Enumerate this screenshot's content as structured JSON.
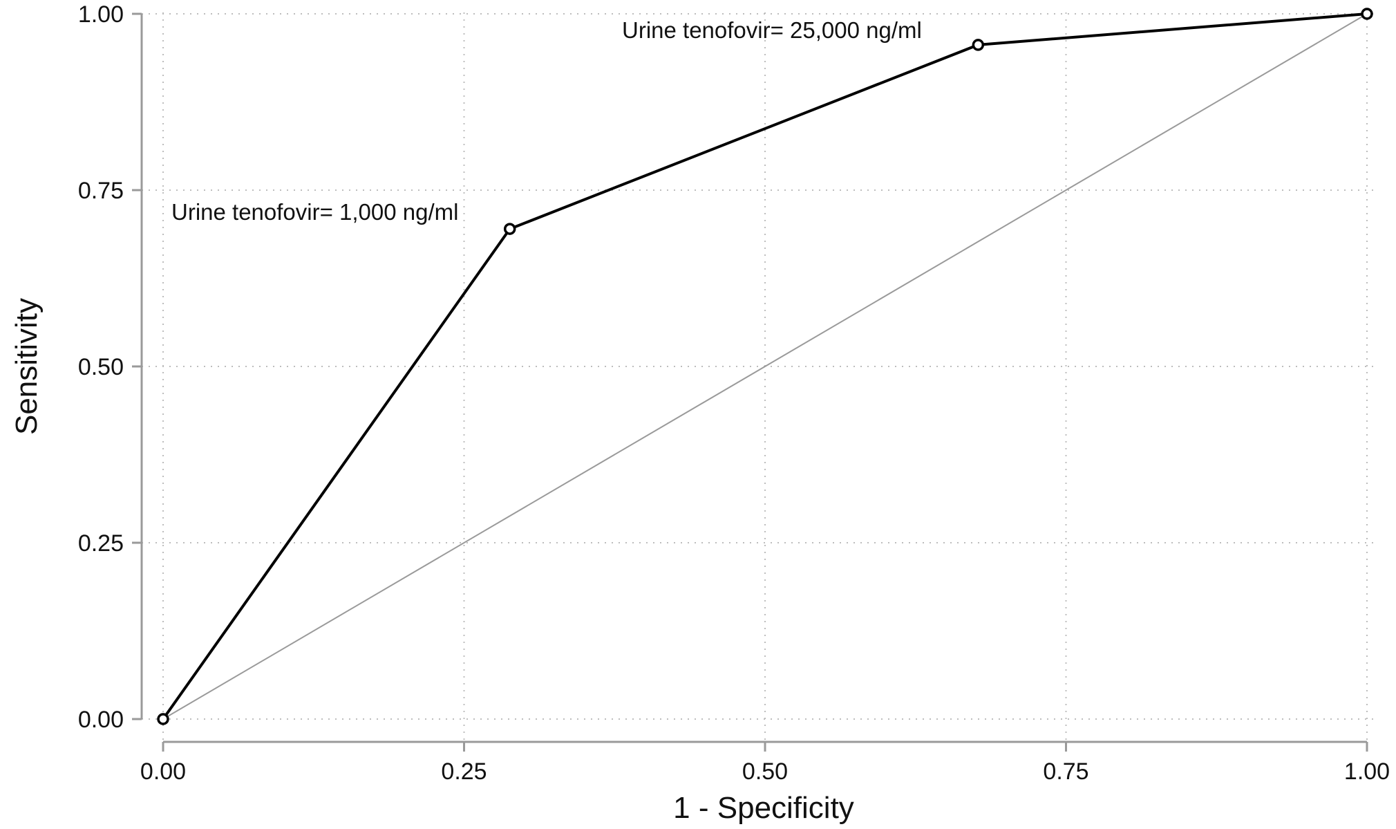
{
  "chart_data": {
    "type": "line",
    "xlabel": "1 - Specificity",
    "ylabel": "Sensitivity",
    "xlim": [
      0,
      1
    ],
    "ylim": [
      0,
      1
    ],
    "grid": true,
    "x_ticks": [
      "0.00",
      "0.25",
      "0.50",
      "0.75",
      "1.00"
    ],
    "y_ticks": [
      "0.00",
      "0.25",
      "0.50",
      "0.75",
      "1.00"
    ],
    "series": [
      {
        "points": [
          {
            "x": 0.0,
            "y": 0.0
          },
          {
            "x": 0.288,
            "y": 0.695
          },
          {
            "x": 0.677,
            "y": 0.956
          },
          {
            "x": 1.0,
            "y": 1.0
          }
        ]
      }
    ],
    "reference_line": [
      {
        "x": 0.0,
        "y": 0.0
      },
      {
        "x": 1.0,
        "y": 1.0
      }
    ],
    "annotations": [
      {
        "text": "Urine tenofovir= 1,000 ng/ml",
        "x": 0.288,
        "y": 0.695
      },
      {
        "text": "Urine tenofovir= 25,000 ng/ml",
        "x": 0.677,
        "y": 0.956
      }
    ],
    "colors": {
      "curve": "#000000",
      "reference": "#9a9a9a",
      "grid": "#bdbdbd",
      "axis": "#9a9a9a"
    }
  }
}
